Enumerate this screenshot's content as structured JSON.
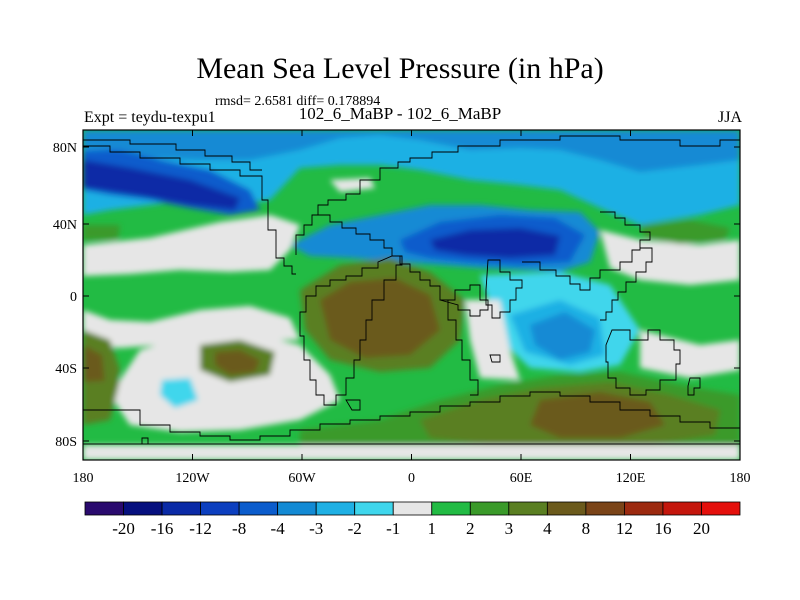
{
  "title": "Mean Sea Level Pressure (in hPa)",
  "stats": "rmsd= 2.6581 diff= 0.178894",
  "left_label": "Expt = teydu-texpu1",
  "center_label": "102_6_MaBP - 102_6_MaBP",
  "right_label": "JJA",
  "y_ticks": [
    "80N",
    "40N",
    "0",
    "40S",
    "80S"
  ],
  "x_ticks": [
    "180",
    "120W",
    "60W",
    "0",
    "60E",
    "120E",
    "180"
  ],
  "colorbar": {
    "colors": [
      "#2a0a6e",
      "#06107e",
      "#0a2aa6",
      "#0c3fbf",
      "#0b5ccc",
      "#138ad4",
      "#1fb0e4",
      "#3fd6ec",
      "#e6e6e6",
      "#22bb44",
      "#3a9a2a",
      "#5a7f22",
      "#6b5a1c",
      "#7a4418",
      "#9c2a10",
      "#c4160c",
      "#e4100c"
    ],
    "labels": [
      "-20",
      "-16",
      "-12",
      "-8",
      "-4",
      "-3",
      "-2",
      "-1",
      "1",
      "2",
      "3",
      "4",
      "8",
      "12",
      "16",
      "20"
    ]
  }
}
